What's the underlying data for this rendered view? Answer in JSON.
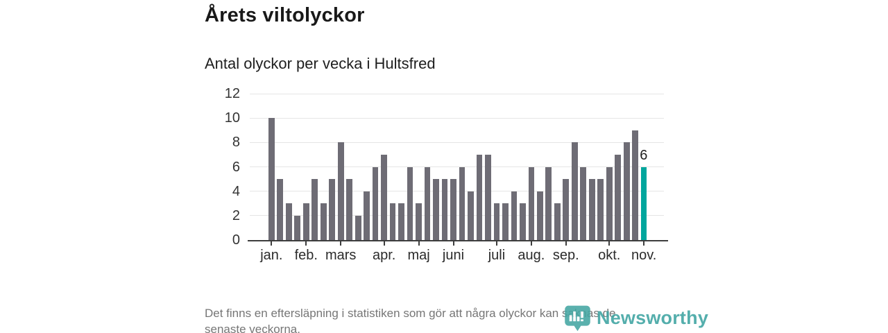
{
  "page": {
    "footer_line1": "Det finns en eftersläpning i statistiken som gör att några olyckor kan saknas de",
    "footer_line2": "senaste veckorna.",
    "brand_name": "Newsworthy"
  },
  "colors": {
    "bar": "#6e6c75",
    "highlight": "#00a69d",
    "axis": "#3d3d3d",
    "gridline": "#e5e5e5",
    "brand_teal": "#3da3a1",
    "footer_text": "#767676"
  },
  "chart_data": {
    "type": "bar",
    "title": "Årets viltolyckor",
    "subtitle": "Antal olyckor per vecka i Hultsfred",
    "values": [
      10,
      5,
      3,
      2,
      3,
      5,
      3,
      5,
      8,
      5,
      2,
      4,
      6,
      7,
      3,
      3,
      6,
      3,
      6,
      5,
      5,
      5,
      6,
      4,
      7,
      7,
      3,
      3,
      4,
      3,
      6,
      4,
      6,
      3,
      5,
      8,
      6,
      5,
      5,
      6,
      7,
      8,
      9,
      6
    ],
    "unit": "olyckor per vecka",
    "highlight_index": 43,
    "highlight_label": "6",
    "y_ticks": [
      0,
      2,
      4,
      6,
      8,
      10,
      12
    ],
    "ylim": [
      0,
      12
    ],
    "grid": true,
    "month_labels": [
      "jan.",
      "feb.",
      "mars",
      "apr.",
      "maj",
      "juni",
      "juli",
      "aug.",
      "sep.",
      "okt.",
      "nov."
    ],
    "month_tick_bar_indices": [
      0,
      4,
      8,
      13,
      17,
      21,
      26,
      30,
      34,
      39,
      43
    ],
    "bar_color": "#6e6c75",
    "highlight_color": "#00a69d"
  }
}
